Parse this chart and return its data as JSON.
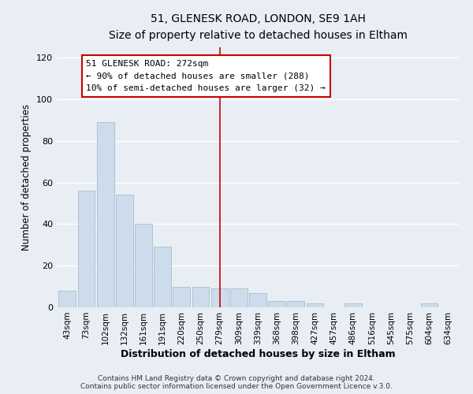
{
  "title": "51, GLENESK ROAD, LONDON, SE9 1AH",
  "subtitle": "Size of property relative to detached houses in Eltham",
  "xlabel": "Distribution of detached houses by size in Eltham",
  "ylabel": "Number of detached properties",
  "bar_color": "#ccdcec",
  "bar_edge_color": "#aabccc",
  "categories": [
    "43sqm",
    "73sqm",
    "102sqm",
    "132sqm",
    "161sqm",
    "191sqm",
    "220sqm",
    "250sqm",
    "279sqm",
    "309sqm",
    "339sqm",
    "368sqm",
    "398sqm",
    "427sqm",
    "457sqm",
    "486sqm",
    "516sqm",
    "545sqm",
    "575sqm",
    "604sqm",
    "634sqm"
  ],
  "values": [
    8,
    56,
    89,
    54,
    40,
    29,
    10,
    10,
    9,
    9,
    7,
    3,
    3,
    2,
    0,
    2,
    0,
    0,
    0,
    2,
    0
  ],
  "ylim": [
    0,
    125
  ],
  "yticks": [
    0,
    20,
    40,
    60,
    80,
    100,
    120
  ],
  "vline_x_idx": 8,
  "vline_color": "#cc0000",
  "annotation_title": "51 GLENESK ROAD: 272sqm",
  "annotation_line1": "← 90% of detached houses are smaller (288)",
  "annotation_line2": "10% of semi-detached houses are larger (32) →",
  "annotation_box_color": "#ffffff",
  "annotation_box_edge": "#cc0000",
  "footer1": "Contains HM Land Registry data © Crown copyright and database right 2024.",
  "footer2": "Contains public sector information licensed under the Open Government Licence v.3.0.",
  "background_color": "#e8eef4",
  "plot_bg_color": "#e8eef4",
  "grid_color": "#ffffff"
}
